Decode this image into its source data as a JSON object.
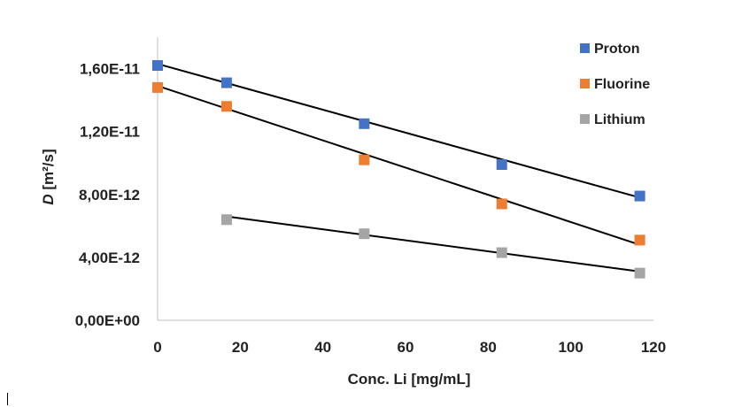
{
  "chart_data": {
    "type": "scatter",
    "xlabel": "Conc. Li [mg/mL]",
    "ylabel_symbol": "D",
    "ylabel_unit": " [m²/s]",
    "xlim": [
      0,
      120
    ],
    "ylim": [
      0,
      1.8e-11
    ],
    "x_ticks": [
      0,
      20,
      40,
      60,
      80,
      100,
      120
    ],
    "x_tick_labels": [
      "0",
      "20",
      "40",
      "60",
      "80",
      "100",
      "120"
    ],
    "y_ticks": [
      0,
      4e-12,
      8e-12,
      1.2e-11,
      1.6e-11
    ],
    "y_tick_labels": [
      "0,00E+00",
      "4,00E-12",
      "8,00E-12",
      "1,20E-11",
      "1,60E-11"
    ],
    "grid": false,
    "legend_position": "top-right",
    "trendlines": "linear",
    "series": [
      {
        "name": "Proton",
        "color": "#4472C4",
        "x": [
          0,
          16.7,
          50,
          83.3,
          116.7
        ],
        "y": [
          1.62e-11,
          1.51e-11,
          1.25e-11,
          9.9e-12,
          7.9e-12
        ],
        "trend": [
          [
            0,
            1.63e-11
          ],
          [
            116.7,
            7.8e-12
          ]
        ]
      },
      {
        "name": "Fluorine",
        "color": "#ED7D31",
        "x": [
          0,
          16.7,
          50,
          83.3,
          116.7
        ],
        "y": [
          1.48e-11,
          1.36e-11,
          1.02e-11,
          7.4e-12,
          5.1e-12
        ],
        "trend": [
          [
            0,
            1.49e-11
          ],
          [
            116.7,
            4.8e-12
          ]
        ]
      },
      {
        "name": "Lithium",
        "color": "#A5A5A5",
        "x": [
          16.7,
          50,
          83.3,
          116.7
        ],
        "y": [
          6.4e-12,
          5.5e-12,
          4.3e-12,
          3e-12
        ],
        "trend": [
          [
            16.7,
            6.6e-12
          ],
          [
            116.7,
            3.1e-12
          ]
        ]
      }
    ]
  }
}
